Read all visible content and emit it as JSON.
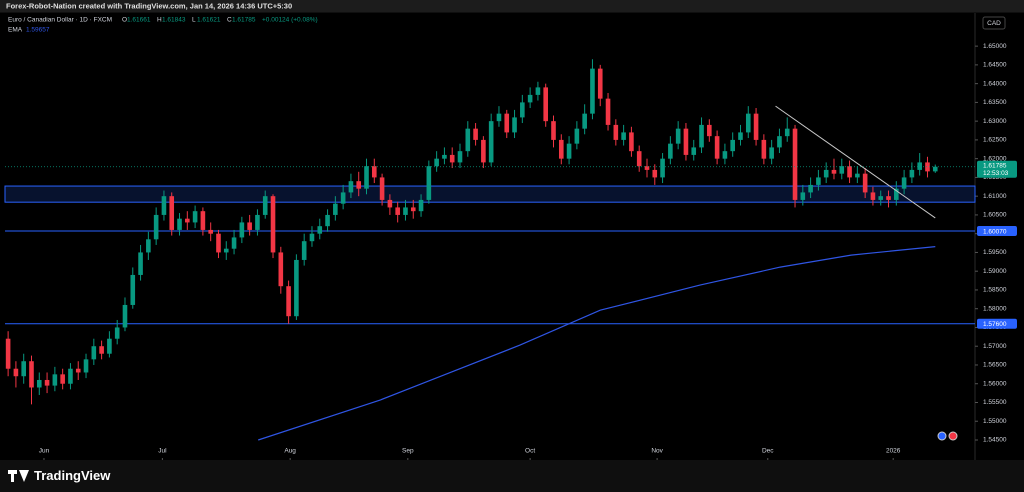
{
  "header": {
    "credit": "Forex-Robot-Nation created with TradingView.com, Jan 14, 2026 14:36 UTC+5:30"
  },
  "footer": {
    "brand": "TradingView"
  },
  "chart_data": {
    "type": "candlestick",
    "title": "Euro / Canadian Dollar · 1D · FXCM",
    "currency": "CAD",
    "ohlc_labels": [
      "O",
      "H",
      "L",
      "C"
    ],
    "change": "+0.00124 (+0.08%)",
    "countdown": "12:53:03",
    "up_color": "#089981",
    "down_color": "#f23645",
    "open": [
      1.572,
      1.564,
      1.562,
      1.566,
      1.559,
      1.561,
      1.5595,
      1.5625,
      1.56,
      1.564,
      1.563,
      1.5665,
      1.57,
      1.568,
      1.572,
      1.575,
      1.581,
      1.589,
      1.595,
      1.5985,
      1.605,
      1.61,
      1.601,
      1.604,
      1.603,
      1.606,
      1.601,
      1.6,
      1.595,
      1.596,
      1.599,
      1.603,
      1.601,
      1.605,
      1.61,
      1.595,
      1.586,
      1.578,
      1.593,
      1.598,
      1.6,
      1.602,
      1.605,
      1.608,
      1.611,
      1.614,
      1.612,
      1.618,
      1.615,
      1.609,
      1.607,
      1.605,
      1.607,
      1.606,
      1.609,
      1.618,
      1.62,
      1.621,
      1.619,
      1.622,
      1.628,
      1.625,
      1.619,
      1.63,
      1.632,
      1.627,
      1.631,
      1.635,
      1.637,
      1.639,
      1.63,
      1.625,
      1.62,
      1.624,
      1.628,
      1.632,
      1.644,
      1.636,
      1.629,
      1.625,
      1.627,
      1.622,
      1.618,
      1.617,
      1.615,
      1.62,
      1.624,
      1.628,
      1.621,
      1.623,
      1.629,
      1.626,
      1.62,
      1.622,
      1.625,
      1.627,
      1.632,
      1.625,
      1.62,
      1.623,
      1.626,
      1.628,
      1.609,
      1.611,
      1.613,
      1.615,
      1.617,
      1.616,
      1.618,
      1.615,
      1.616,
      1.611,
      1.609,
      1.61,
      1.609,
      1.612,
      1.615,
      1.617,
      1.619,
      1.61661
    ],
    "high": [
      1.574,
      1.566,
      1.568,
      1.5675,
      1.563,
      1.563,
      1.5645,
      1.564,
      1.5655,
      1.566,
      1.568,
      1.572,
      1.5715,
      1.574,
      1.577,
      1.583,
      1.591,
      1.597,
      1.6005,
      1.607,
      1.6115,
      1.611,
      1.6055,
      1.606,
      1.6075,
      1.607,
      1.603,
      1.601,
      1.598,
      1.601,
      1.6045,
      1.605,
      1.6065,
      1.6115,
      1.6105,
      1.5965,
      1.5875,
      1.5945,
      1.6,
      1.602,
      1.604,
      1.6065,
      1.61,
      1.613,
      1.616,
      1.6165,
      1.62,
      1.62,
      1.616,
      1.6105,
      1.6085,
      1.609,
      1.609,
      1.6105,
      1.6195,
      1.622,
      1.623,
      1.623,
      1.624,
      1.63,
      1.6295,
      1.626,
      1.632,
      1.634,
      1.633,
      1.633,
      1.637,
      1.639,
      1.6405,
      1.64,
      1.6315,
      1.6265,
      1.626,
      1.63,
      1.6345,
      1.6465,
      1.645,
      1.6375,
      1.6305,
      1.629,
      1.6285,
      1.6235,
      1.62,
      1.6185,
      1.6215,
      1.626,
      1.63,
      1.6295,
      1.625,
      1.631,
      1.6305,
      1.6275,
      1.624,
      1.627,
      1.629,
      1.634,
      1.6335,
      1.6265,
      1.625,
      1.628,
      1.631,
      1.629,
      1.613,
      1.615,
      1.617,
      1.619,
      1.62,
      1.62,
      1.6195,
      1.618,
      1.6175,
      1.6125,
      1.6115,
      1.6115,
      1.614,
      1.617,
      1.619,
      1.6215,
      1.6205,
      1.61843
    ],
    "low": [
      1.562,
      1.559,
      1.56,
      1.5545,
      1.557,
      1.5575,
      1.558,
      1.5585,
      1.5585,
      1.561,
      1.5615,
      1.565,
      1.5665,
      1.567,
      1.5705,
      1.574,
      1.58,
      1.5875,
      1.593,
      1.597,
      1.6035,
      1.5995,
      1.5995,
      1.601,
      1.6015,
      1.5995,
      1.598,
      1.5935,
      1.593,
      1.5945,
      1.5975,
      1.5995,
      1.5995,
      1.604,
      1.5935,
      1.584,
      1.576,
      1.577,
      1.5915,
      1.5965,
      1.5985,
      1.6005,
      1.6035,
      1.6065,
      1.6095,
      1.61,
      1.6105,
      1.6135,
      1.6075,
      1.605,
      1.603,
      1.6035,
      1.604,
      1.6045,
      1.608,
      1.6165,
      1.6185,
      1.6175,
      1.6175,
      1.6205,
      1.6235,
      1.6175,
      1.618,
      1.6285,
      1.6255,
      1.6255,
      1.6295,
      1.6335,
      1.6355,
      1.6285,
      1.623,
      1.6185,
      1.6185,
      1.6225,
      1.6265,
      1.6305,
      1.634,
      1.6275,
      1.6235,
      1.6235,
      1.6205,
      1.6165,
      1.615,
      1.613,
      1.6135,
      1.6185,
      1.6225,
      1.6195,
      1.6195,
      1.6215,
      1.6245,
      1.6185,
      1.6185,
      1.6205,
      1.6235,
      1.6255,
      1.6235,
      1.6185,
      1.6185,
      1.6215,
      1.6245,
      1.607,
      1.6075,
      1.6095,
      1.6115,
      1.6135,
      1.6145,
      1.6145,
      1.6135,
      1.6135,
      1.6095,
      1.6075,
      1.6075,
      1.607,
      1.6075,
      1.6105,
      1.6135,
      1.6155,
      1.615,
      1.61621
    ],
    "close": [
      1.564,
      1.562,
      1.566,
      1.559,
      1.561,
      1.5595,
      1.5625,
      1.56,
      1.564,
      1.563,
      1.5665,
      1.57,
      1.568,
      1.572,
      1.575,
      1.581,
      1.589,
      1.595,
      1.5985,
      1.605,
      1.61,
      1.601,
      1.604,
      1.603,
      1.606,
      1.601,
      1.6,
      1.595,
      1.596,
      1.599,
      1.603,
      1.601,
      1.605,
      1.61,
      1.595,
      1.586,
      1.578,
      1.593,
      1.598,
      1.6,
      1.602,
      1.605,
      1.608,
      1.611,
      1.614,
      1.612,
      1.618,
      1.615,
      1.609,
      1.607,
      1.605,
      1.607,
      1.606,
      1.609,
      1.618,
      1.62,
      1.621,
      1.619,
      1.622,
      1.628,
      1.625,
      1.619,
      1.63,
      1.632,
      1.627,
      1.631,
      1.635,
      1.637,
      1.639,
      1.63,
      1.625,
      1.62,
      1.624,
      1.628,
      1.632,
      1.644,
      1.636,
      1.629,
      1.625,
      1.627,
      1.622,
      1.618,
      1.617,
      1.615,
      1.62,
      1.624,
      1.628,
      1.621,
      1.623,
      1.629,
      1.626,
      1.62,
      1.622,
      1.625,
      1.627,
      1.632,
      1.625,
      1.62,
      1.623,
      1.626,
      1.628,
      1.609,
      1.611,
      1.613,
      1.615,
      1.617,
      1.616,
      1.618,
      1.615,
      1.616,
      1.611,
      1.609,
      1.61,
      1.609,
      1.612,
      1.615,
      1.617,
      1.619,
      1.61661,
      1.61785
    ],
    "ema": {
      "name": "EMA",
      "color": "#2f55e4",
      "x": [
        32.1,
        47.8,
        65.7,
        76,
        88.8,
        99.1,
        108.2,
        119
      ],
      "values": [
        1.545,
        1.5557,
        1.5703,
        1.5796,
        1.5863,
        1.5911,
        1.5943,
        1.59657
      ]
    },
    "zone": {
      "color": "#2962ff",
      "values": [
        1.6084,
        1.6127
      ]
    },
    "levels": [
      {
        "value": 1.6007,
        "label": "1.60070"
      },
      {
        "value": 1.576,
        "label": "1.57600"
      }
    ],
    "trendline": {
      "color": "#c8c8c8",
      "x": [
        98.5,
        119
      ],
      "values": [
        1.634,
        1.6042
      ]
    },
    "xlim": [
      -0.4,
      124.1
    ],
    "ylim": [
      1.5402,
      1.6543
    ],
    "xticks": [
      {
        "value": 4.6,
        "label": "Jun"
      },
      {
        "value": 19.8,
        "label": "Jul"
      },
      {
        "value": 36.2,
        "label": "Aug"
      },
      {
        "value": 51.3,
        "label": "Sep"
      },
      {
        "value": 67,
        "label": "Oct"
      },
      {
        "value": 83.3,
        "label": "Nov"
      },
      {
        "value": 97.5,
        "label": "Dec"
      },
      {
        "value": 113.6,
        "label": "2026"
      }
    ],
    "yticks": [
      {
        "value": 1.545,
        "label": "1.54500"
      },
      {
        "value": 1.55,
        "label": "1.55000"
      },
      {
        "value": 1.555,
        "label": "1.55500"
      },
      {
        "value": 1.56,
        "label": "1.56000"
      },
      {
        "value": 1.565,
        "label": "1.56500"
      },
      {
        "value": 1.57,
        "label": "1.57000"
      },
      {
        "value": 1.575,
        "label": "1.57500"
      },
      {
        "value": 1.58,
        "label": "1.58000"
      },
      {
        "value": 1.585,
        "label": "1.58500"
      },
      {
        "value": 1.59,
        "label": "1.59000"
      },
      {
        "value": 1.595,
        "label": "1.59500"
      },
      {
        "value": 1.6,
        "label": "1.60000"
      },
      {
        "value": 1.605,
        "label": "1.60500"
      },
      {
        "value": 1.61,
        "label": "1.61000"
      },
      {
        "value": 1.615,
        "label": "1.61500"
      },
      {
        "value": 1.62,
        "label": "1.62000"
      },
      {
        "value": 1.625,
        "label": "1.62500"
      },
      {
        "value": 1.63,
        "label": "1.63000"
      },
      {
        "value": 1.635,
        "label": "1.63500"
      },
      {
        "value": 1.64,
        "label": "1.64000"
      },
      {
        "value": 1.645,
        "label": "1.64500"
      },
      {
        "value": 1.65,
        "label": "1.65000"
      }
    ]
  }
}
